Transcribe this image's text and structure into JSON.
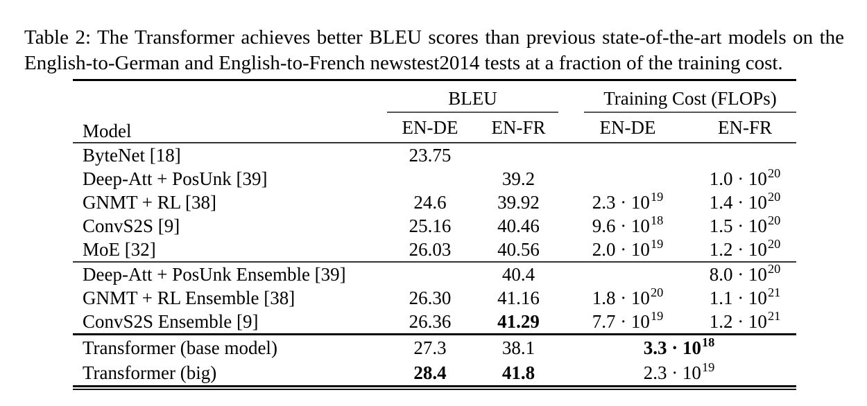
{
  "caption": {
    "line1": "Table 2: The Transformer achieves better BLEU scores than previous state-of-the-art models on the",
    "line2": "English-to-German and English-to-French newstest2014 tests at a fraction of the training cost."
  },
  "table": {
    "col_model": "Model",
    "group_bleu": "BLEU",
    "group_cost": "Training Cost (FLOPs)",
    "subheads": [
      "EN-DE",
      "EN-FR",
      "EN-DE",
      "EN-FR"
    ],
    "rows": [
      {
        "model": "ByteNet [18]",
        "rule_above": "none",
        "bleu_ende": {
          "text": "23.75",
          "bold": false
        },
        "bleu_enfr": null,
        "cost": [
          null,
          null
        ]
      },
      {
        "model": "Deep-Att + PosUnk [39]",
        "rule_above": "none",
        "bleu_ende": null,
        "bleu_enfr": {
          "text": "39.2",
          "bold": false
        },
        "cost": [
          null,
          {
            "base": "1.0 · 10",
            "exp": "20",
            "bold": false,
            "span": 1
          }
        ]
      },
      {
        "model": "GNMT + RL [38]",
        "rule_above": "none",
        "bleu_ende": {
          "text": "24.6",
          "bold": false
        },
        "bleu_enfr": {
          "text": "39.92",
          "bold": false
        },
        "cost": [
          {
            "base": "2.3 · 10",
            "exp": "19",
            "bold": false,
            "span": 1
          },
          {
            "base": "1.4 · 10",
            "exp": "20",
            "bold": false,
            "span": 1
          }
        ]
      },
      {
        "model": "ConvS2S [9]",
        "rule_above": "none",
        "bleu_ende": {
          "text": "25.16",
          "bold": false
        },
        "bleu_enfr": {
          "text": "40.46",
          "bold": false
        },
        "cost": [
          {
            "base": "9.6 · 10",
            "exp": "18",
            "bold": false,
            "span": 1
          },
          {
            "base": "1.5 · 10",
            "exp": "20",
            "bold": false,
            "span": 1
          }
        ]
      },
      {
        "model": "MoE [32]",
        "rule_above": "none",
        "bleu_ende": {
          "text": "26.03",
          "bold": false
        },
        "bleu_enfr": {
          "text": "40.56",
          "bold": false
        },
        "cost": [
          {
            "base": "2.0 · 10",
            "exp": "19",
            "bold": false,
            "span": 1
          },
          {
            "base": "1.2 · 10",
            "exp": "20",
            "bold": false,
            "span": 1
          }
        ]
      },
      {
        "model": "Deep-Att + PosUnk Ensemble [39]",
        "rule_above": "thin",
        "bleu_ende": null,
        "bleu_enfr": {
          "text": "40.4",
          "bold": false
        },
        "cost": [
          null,
          {
            "base": "8.0 · 10",
            "exp": "20",
            "bold": false,
            "span": 1
          }
        ]
      },
      {
        "model": "GNMT + RL Ensemble [38]",
        "rule_above": "none",
        "bleu_ende": {
          "text": "26.30",
          "bold": false
        },
        "bleu_enfr": {
          "text": "41.16",
          "bold": false
        },
        "cost": [
          {
            "base": "1.8 · 10",
            "exp": "20",
            "bold": false,
            "span": 1
          },
          {
            "base": "1.1 · 10",
            "exp": "21",
            "bold": false,
            "span": 1
          }
        ]
      },
      {
        "model": "ConvS2S Ensemble [9]",
        "rule_above": "none",
        "bleu_ende": {
          "text": "26.36",
          "bold": false
        },
        "bleu_enfr": {
          "text": "41.29",
          "bold": true
        },
        "cost": [
          {
            "base": "7.7 · 10",
            "exp": "19",
            "bold": false,
            "span": 1
          },
          {
            "base": "1.2 · 10",
            "exp": "21",
            "bold": false,
            "span": 1
          }
        ]
      },
      {
        "model": "Transformer (base model)",
        "rule_above": "thick",
        "bleu_ende": {
          "text": "27.3",
          "bold": false
        },
        "bleu_enfr": {
          "text": "38.1",
          "bold": false
        },
        "cost": [
          {
            "base": "3.3 · 10",
            "exp": "18",
            "bold": true,
            "span": 2
          }
        ]
      },
      {
        "model": "Transformer (big)",
        "rule_above": "none",
        "bleu_ende": {
          "text": "28.4",
          "bold": true
        },
        "bleu_enfr": {
          "text": "41.8",
          "bold": true
        },
        "cost": [
          {
            "base": "2.3 · 10",
            "exp": "19",
            "bold": false,
            "span": 2
          }
        ]
      }
    ]
  }
}
